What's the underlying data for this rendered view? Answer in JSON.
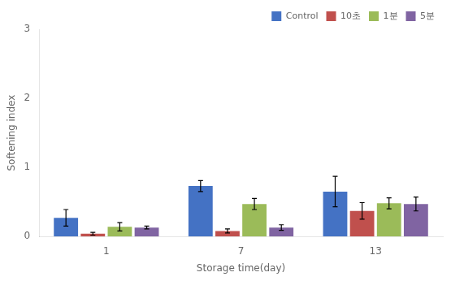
{
  "chart_data": {
    "type": "bar",
    "xlabel": "Storage time(day)",
    "ylabel": "Softening index",
    "categories": [
      "1",
      "7",
      "13"
    ],
    "series": [
      {
        "name": "Control",
        "color": "#4472C4",
        "values": [
          0.27,
          0.73,
          0.65
        ],
        "errors": [
          0.12,
          0.08,
          0.22
        ]
      },
      {
        "name": "10초",
        "color": "#C0504D",
        "values": [
          0.04,
          0.08,
          0.37
        ],
        "errors": [
          0.02,
          0.03,
          0.12
        ]
      },
      {
        "name": "1분",
        "color": "#9BBB59",
        "values": [
          0.14,
          0.47,
          0.48
        ],
        "errors": [
          0.06,
          0.08,
          0.08
        ]
      },
      {
        "name": "5분",
        "color": "#8064A2",
        "values": [
          0.13,
          0.13,
          0.47
        ],
        "errors": [
          0.02,
          0.04,
          0.1
        ]
      }
    ],
    "ylim": [
      0,
      3
    ],
    "yticks": [
      0,
      1,
      2,
      3
    ],
    "grid": false,
    "legend": "upper right"
  }
}
